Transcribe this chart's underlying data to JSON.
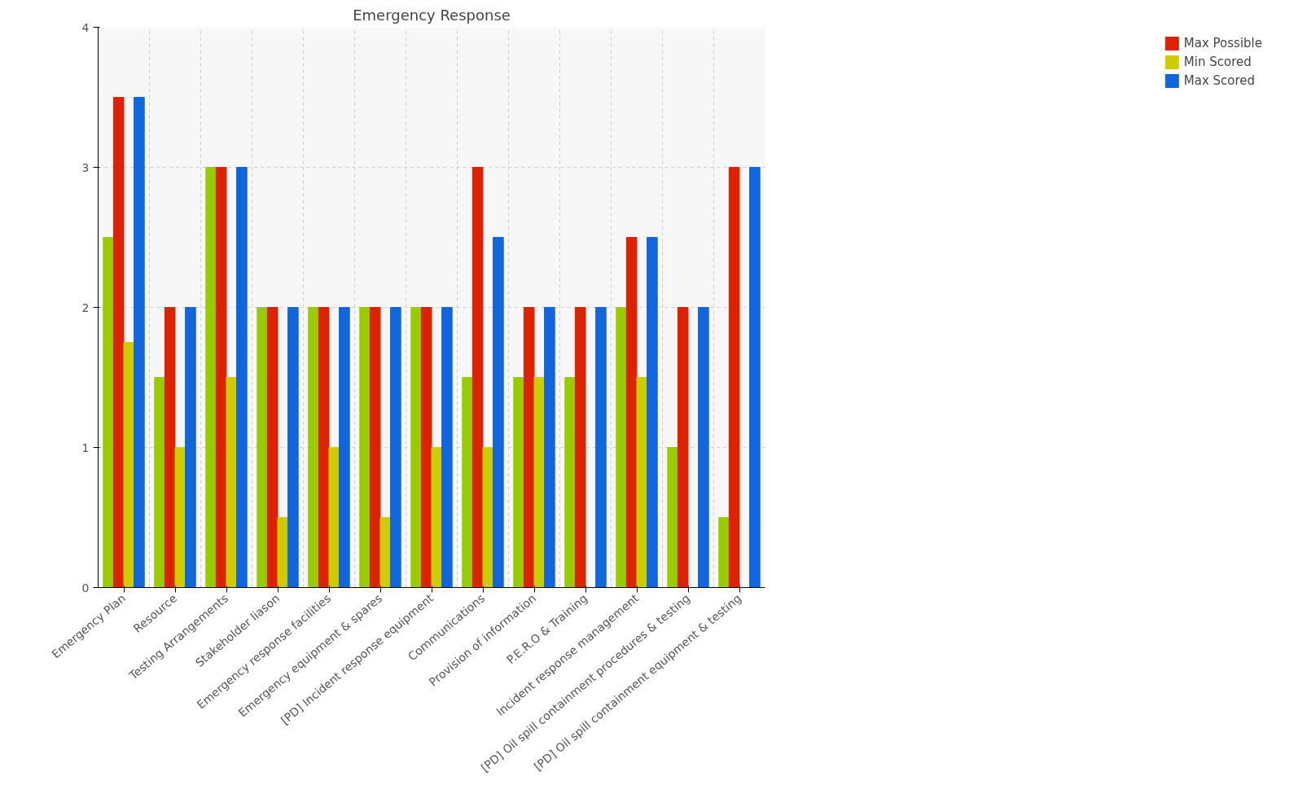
{
  "chart_data": {
    "type": "bar",
    "title": "Emergency Response",
    "categories": [
      "Emergency Plan",
      "Resource",
      "Testing Arrangements",
      "Stakeholder liason",
      "Emergency response facilities",
      "Emergency equipment & spares",
      "[PD] Incident response equipment",
      "Communications",
      "Provision of information",
      "P.E.R.O & Training",
      "Incident response management",
      "[PD] Oil spill containment procedures & testing",
      "[PD] Oil spill containment equipment & testing"
    ],
    "series": [
      {
        "color": "#99cc00",
        "values": [
          2.5,
          1.5,
          3,
          2,
          2,
          2,
          2,
          1.5,
          1.5,
          1.5,
          2,
          1,
          0.5
        ]
      },
      {
        "name": "Max Possible",
        "color": "#dd2200",
        "values": [
          3.5,
          2,
          3,
          2,
          2,
          2,
          2,
          3,
          2,
          2,
          2.5,
          2,
          3
        ]
      },
      {
        "name": "Min Scored",
        "color": "#cccc00",
        "values": [
          1.75,
          1,
          1.5,
          0.5,
          1,
          0.5,
          1,
          1,
          1.5,
          0,
          1.5,
          0,
          0
        ]
      },
      {
        "name": "Max Scored",
        "color": "#1166dd",
        "values": [
          3.5,
          2,
          3,
          2,
          2,
          2,
          2,
          2.5,
          2,
          2,
          2.5,
          2,
          3
        ]
      }
    ],
    "ylim": [
      0,
      4
    ],
    "yticks": [
      0,
      1,
      2,
      3,
      4
    ],
    "grid": true,
    "legend": "top right"
  }
}
